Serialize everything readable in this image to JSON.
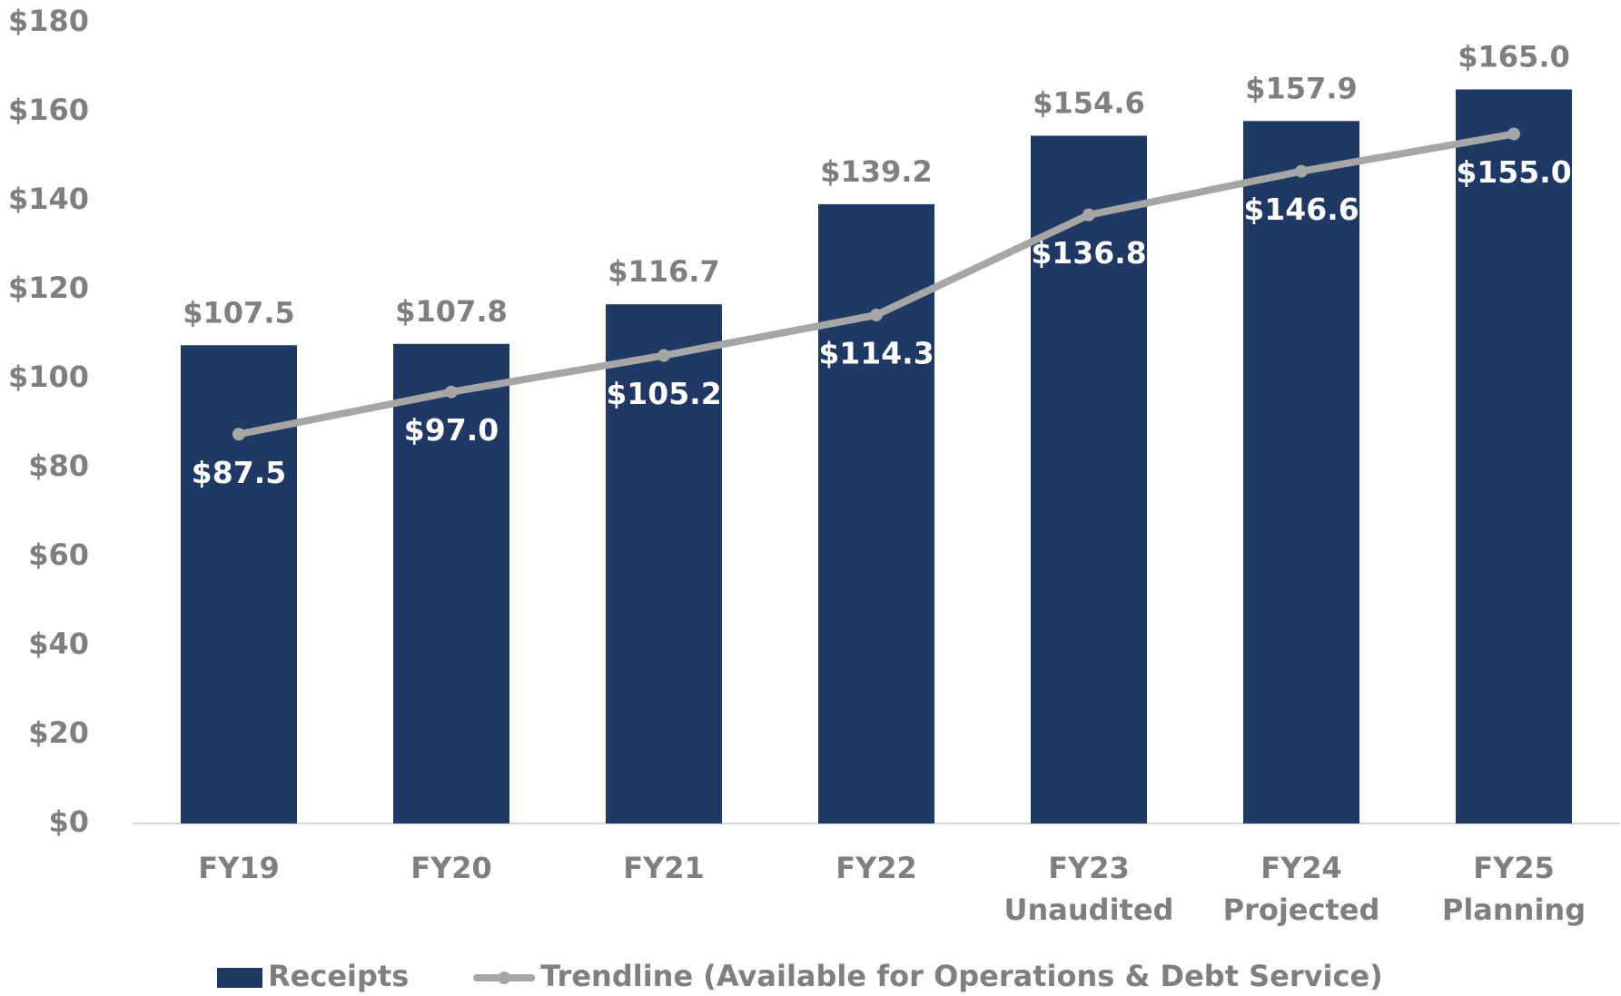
{
  "chart_data": {
    "type": "bar",
    "categories": [
      [
        "FY19"
      ],
      [
        "FY20"
      ],
      [
        "FY21"
      ],
      [
        "FY22"
      ],
      [
        "FY23",
        "Unaudited"
      ],
      [
        "FY24",
        "Projected"
      ],
      [
        "FY25",
        "Planning"
      ]
    ],
    "series": [
      {
        "name": "Receipts",
        "type": "bar",
        "color": "#203864",
        "values": [
          107.5,
          107.8,
          116.7,
          139.2,
          154.6,
          157.9,
          165.0
        ],
        "value_labels": [
          "$107.5",
          "$107.8",
          "$116.7",
          "$139.2",
          "$154.6",
          "$157.9",
          "$165.0"
        ]
      },
      {
        "name": "Trendline (Available for Operations & Debt Service)",
        "type": "line",
        "color": "#a6a6a6",
        "values": [
          87.5,
          97.0,
          105.2,
          114.3,
          136.8,
          146.6,
          155.0
        ],
        "value_labels": [
          "$87.5",
          "$97.0",
          "$105.2",
          "$114.3",
          "$136.8",
          "$146.6",
          "$155.0"
        ]
      }
    ],
    "ylim": [
      0,
      180
    ],
    "yticks": [
      {
        "value": 0,
        "label": "$0"
      },
      {
        "value": 20,
        "label": "$20"
      },
      {
        "value": 40,
        "label": "$40"
      },
      {
        "value": 60,
        "label": "$60"
      },
      {
        "value": 80,
        "label": "$80"
      },
      {
        "value": 100,
        "label": "$100"
      },
      {
        "value": 120,
        "label": "$120"
      },
      {
        "value": 140,
        "label": "$140"
      },
      {
        "value": 160,
        "label": "$160"
      },
      {
        "value": 180,
        "label": "$180"
      }
    ],
    "grid": false,
    "legend": "bottom"
  }
}
